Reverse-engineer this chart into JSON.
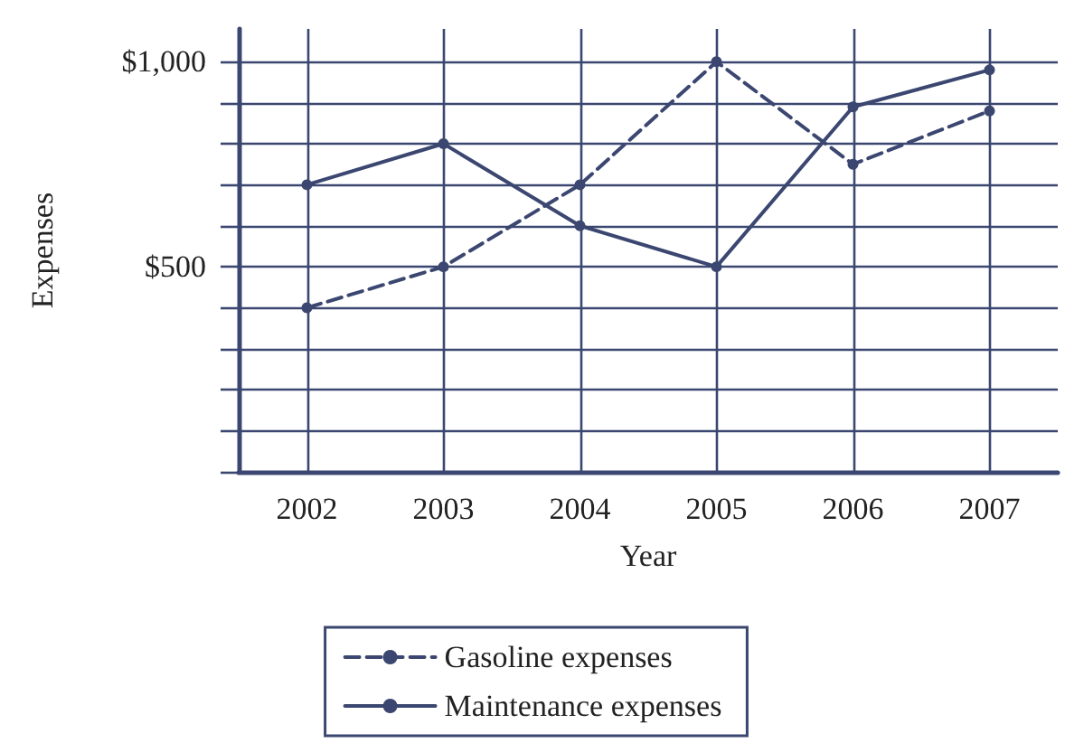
{
  "chart_data": {
    "type": "line",
    "xlabel": "Year",
    "ylabel": "Expenses",
    "categories": [
      "2002",
      "2003",
      "2004",
      "2005",
      "2006",
      "2007"
    ],
    "series": [
      {
        "name": "Gasoline expenses",
        "color": "#3b4770",
        "line_style": "dashed",
        "values": [
          400,
          500,
          700,
          1000,
          750,
          880
        ]
      },
      {
        "name": "Maintenance expenses",
        "color": "#3b4770",
        "line_style": "solid",
        "values": [
          700,
          800,
          600,
          500,
          890,
          980
        ]
      }
    ],
    "ylim": [
      0,
      1080
    ],
    "yticks": [
      {
        "value": 0,
        "label": null
      },
      {
        "value": 100,
        "label": null
      },
      {
        "value": 200,
        "label": null
      },
      {
        "value": 300,
        "label": null
      },
      {
        "value": 400,
        "label": null
      },
      {
        "value": 500,
        "label": "$500"
      },
      {
        "value": 600,
        "label": null
      },
      {
        "value": 700,
        "label": null
      },
      {
        "value": 800,
        "label": null
      },
      {
        "value": 900,
        "label": null
      },
      {
        "value": 1000,
        "label": "$1,000"
      }
    ],
    "grid": true,
    "legend": "bottom",
    "marker": "circle"
  }
}
